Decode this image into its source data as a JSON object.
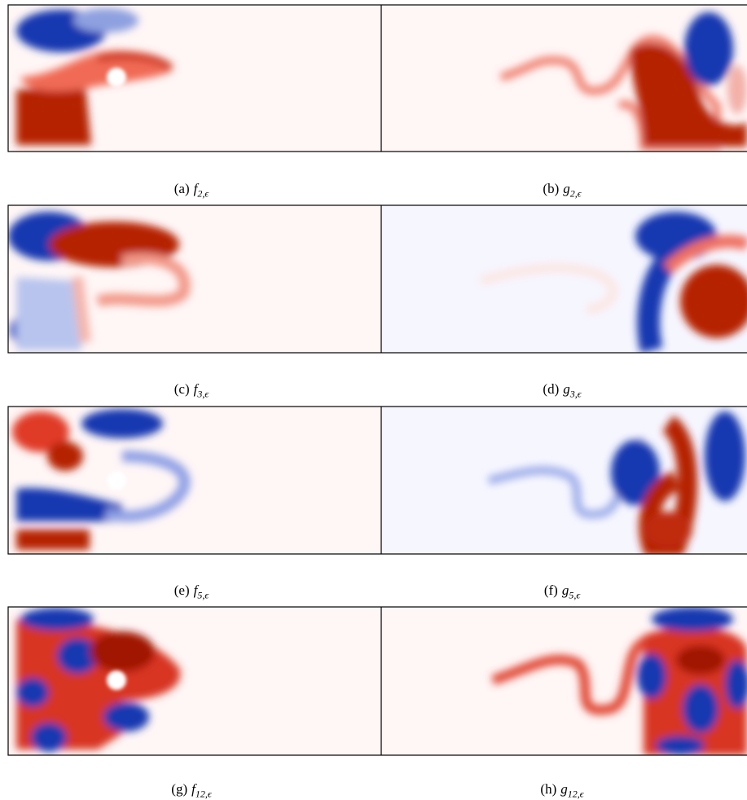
{
  "panels": [
    {
      "label": "(a)",
      "symbol": "f",
      "subscript": "2,ϵ"
    },
    {
      "label": "(b)",
      "symbol": "g",
      "subscript": "2,ϵ"
    },
    {
      "label": "(c)",
      "symbol": "f",
      "subscript": "3,ϵ"
    },
    {
      "label": "(d)",
      "symbol": "g",
      "subscript": "3,ϵ"
    },
    {
      "label": "(e)",
      "symbol": "f",
      "subscript": "5,ϵ"
    },
    {
      "label": "(f)",
      "symbol": "g",
      "subscript": "5,ϵ"
    },
    {
      "label": "(g)",
      "symbol": "f",
      "subscript": "12,ϵ"
    },
    {
      "label": "(h)",
      "symbol": "g",
      "subscript": "12,ϵ"
    }
  ]
}
